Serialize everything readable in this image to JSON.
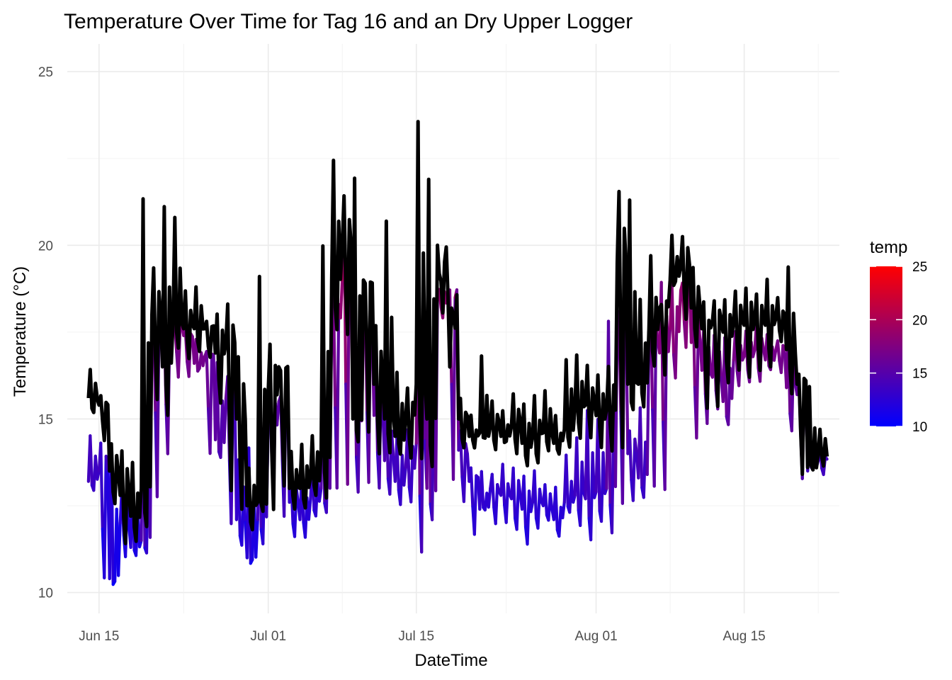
{
  "chart_data": {
    "type": "line",
    "title": "Temperature Over Time for Tag 16 and an Dry Upper Logger",
    "xlabel": "DateTime",
    "ylabel": "Temperature (°C)",
    "x_ticks": [
      "Jun 15",
      "Jul 01",
      "Jul 15",
      "Aug 01",
      "Aug 15"
    ],
    "x_tick_dates": [
      "2024-06-15",
      "2024-07-01",
      "2024-07-15",
      "2024-08-01",
      "2024-08-15"
    ],
    "xlim": [
      "2024-06-12",
      "2024-08-24"
    ],
    "y_ticks": [
      "10",
      "15",
      "20",
      "25"
    ],
    "ylim": [
      9.4,
      25.8
    ],
    "grid": true,
    "legend": {
      "title": "temp",
      "position": "right",
      "type": "colorbar",
      "low": 10,
      "high": 25,
      "ticks": [
        "25",
        "20",
        "15",
        "10"
      ],
      "low_color": "#0000ff",
      "high_color": "#ff0000"
    },
    "series": [
      {
        "color": "gradient by temp",
        "x": [
          "2024-06-14",
          "2024-06-15",
          "2024-06-16",
          "2024-06-17",
          "2024-06-18",
          "2024-06-19",
          "2024-06-20",
          "2024-06-21",
          "2024-06-22",
          "2024-06-23",
          "2024-06-24",
          "2024-06-25",
          "2024-06-26",
          "2024-06-27",
          "2024-06-28",
          "2024-06-29",
          "2024-06-30",
          "2024-07-01",
          "2024-07-02",
          "2024-07-03",
          "2024-07-04",
          "2024-07-05",
          "2024-07-06",
          "2024-07-07",
          "2024-07-08",
          "2024-07-09",
          "2024-07-10",
          "2024-07-11",
          "2024-07-12",
          "2024-07-13",
          "2024-07-14",
          "2024-07-15",
          "2024-07-16",
          "2024-07-17",
          "2024-07-18",
          "2024-07-19",
          "2024-07-20",
          "2024-07-21",
          "2024-07-22",
          "2024-07-23",
          "2024-07-24",
          "2024-07-25",
          "2024-07-26",
          "2024-07-27",
          "2024-07-28",
          "2024-07-29",
          "2024-07-30",
          "2024-07-31",
          "2024-08-01",
          "2024-08-02",
          "2024-08-03",
          "2024-08-04",
          "2024-08-05",
          "2024-08-06",
          "2024-08-07",
          "2024-08-08",
          "2024-08-09",
          "2024-08-10",
          "2024-08-11",
          "2024-08-12",
          "2024-08-13",
          "2024-08-14",
          "2024-08-15",
          "2024-08-16",
          "2024-08-17",
          "2024-08-18",
          "2024-08-19",
          "2024-08-20",
          "2024-08-21",
          "2024-08-22"
        ],
        "y": [
          13.2,
          13.5,
          10.4,
          12.0,
          11.3,
          11.5,
          17.5,
          16.9,
          17.6,
          17.4,
          16.6,
          16.8,
          14.4,
          15.6,
          12.1,
          11.0,
          12.1,
          14.8,
          15.5,
          12.6,
          12.1,
          12.7,
          13.0,
          17.8,
          19.0,
          15.0,
          17.4,
          15.1,
          13.8,
          13.2,
          13.6,
          14.3,
          13.0,
          18.4,
          18.6,
          14.1,
          13.2,
          12.4,
          13.0,
          12.8,
          12.7,
          12.4,
          12.6,
          12.5,
          12.1,
          12.6,
          12.8,
          12.7,
          12.9,
          13.0,
          17.8,
          14.0,
          13.3,
          17.2,
          16.9,
          17.6,
          18.7,
          17.2,
          16.4,
          16.2,
          15.5,
          16.7,
          16.8,
          17.0,
          16.7,
          17.0,
          15.9,
          15.7,
          13.5,
          13.8
        ],
        "y_min": [
          13.0,
          10.4,
          10.2,
          11.1,
          11.1,
          11.2,
          12.7,
          14.0,
          16.2,
          16.1,
          16.4,
          14.0,
          13.9,
          11.9,
          11.4,
          10.9,
          11.3,
          12.8,
          12.3,
          11.6,
          11.7,
          12.1,
          12.3,
          13.0,
          13.2,
          12.9,
          13.1,
          12.9,
          12.8,
          12.5,
          12.6,
          11.1,
          12.1,
          17.9,
          13.2,
          12.7,
          11.8,
          12.4,
          12.0,
          12.1,
          11.8,
          11.3,
          11.8,
          12.0,
          11.7,
          12.2,
          12.0,
          11.6,
          12.0,
          11.8,
          12.5,
          12.6,
          12.7,
          13.1,
          13.0,
          16.2,
          17.0,
          14.5,
          14.9,
          15.2,
          14.8,
          16.0,
          16.0,
          16.1,
          16.5,
          16.4,
          14.6,
          13.3,
          13.5,
          13.5
        ],
        "y_max": [
          14.5,
          14.3,
          14.3,
          13.0,
          13.3,
          17.6,
          18.0,
          17.7,
          17.7,
          17.5,
          17.3,
          17.0,
          16.6,
          16.2,
          13.8,
          14.1,
          15.6,
          16.0,
          15.7,
          13.4,
          13.5,
          13.8,
          16.8,
          18.6,
          21.0,
          17.6,
          18.7,
          16.8,
          15.5,
          14.5,
          14.8,
          20.2,
          19.3,
          18.8,
          18.6,
          14.6,
          13.6,
          13.5,
          13.4,
          13.7,
          13.6,
          13.4,
          13.5,
          13.1,
          13.0,
          14.0,
          14.5,
          15.2,
          15.0,
          17.9,
          18.1,
          14.7,
          15.2,
          18.1,
          18.9,
          19.0,
          18.8,
          18.7,
          17.6,
          17.5,
          17.3,
          17.4,
          17.5,
          17.7,
          17.4,
          17.3,
          17.6,
          16.2,
          14.2,
          14.2
        ]
      },
      {
        "color": "#000000",
        "x": [
          "2024-06-14",
          "2024-06-15",
          "2024-06-16",
          "2024-06-17",
          "2024-06-18",
          "2024-06-19",
          "2024-06-20",
          "2024-06-21",
          "2024-06-22",
          "2024-06-23",
          "2024-06-24",
          "2024-06-25",
          "2024-06-26",
          "2024-06-27",
          "2024-06-28",
          "2024-06-29",
          "2024-06-30",
          "2024-07-01",
          "2024-07-02",
          "2024-07-03",
          "2024-07-04",
          "2024-07-05",
          "2024-07-06",
          "2024-07-07",
          "2024-07-08",
          "2024-07-09",
          "2024-07-10",
          "2024-07-11",
          "2024-07-12",
          "2024-07-13",
          "2024-07-14",
          "2024-07-15",
          "2024-07-16",
          "2024-07-17",
          "2024-07-18",
          "2024-07-19",
          "2024-07-20",
          "2024-07-21",
          "2024-07-22",
          "2024-07-23",
          "2024-07-24",
          "2024-07-25",
          "2024-07-26",
          "2024-07-27",
          "2024-07-28",
          "2024-07-29",
          "2024-07-30",
          "2024-07-31",
          "2024-08-01",
          "2024-08-02",
          "2024-08-03",
          "2024-08-04",
          "2024-08-05",
          "2024-08-06",
          "2024-08-07",
          "2024-08-08",
          "2024-08-09",
          "2024-08-10",
          "2024-08-11",
          "2024-08-12",
          "2024-08-13",
          "2024-08-14",
          "2024-08-15",
          "2024-08-16",
          "2024-08-17",
          "2024-08-18",
          "2024-08-19",
          "2024-08-20",
          "2024-08-21",
          "2024-08-22"
        ],
        "y": [
          15.6,
          15.4,
          13.5,
          12.8,
          12.2,
          13.0,
          18.0,
          16.5,
          17.8,
          17.6,
          17.6,
          17.6,
          16.9,
          17.2,
          15.0,
          12.5,
          12.6,
          15.8,
          16.5,
          13.0,
          13.0,
          13.3,
          14.0,
          19.0,
          20.0,
          15.0,
          19.0,
          16.0,
          15.0,
          14.5,
          15.0,
          16.0,
          15.0,
          20.0,
          18.5,
          15.0,
          14.5,
          14.6,
          14.8,
          14.5,
          14.8,
          14.3,
          14.5,
          14.6,
          14.3,
          14.7,
          15.3,
          15.4,
          15.1,
          15.3,
          19.5,
          16.0,
          16.0,
          17.6,
          18.2,
          19.0,
          19.4,
          18.2,
          17.6,
          17.8,
          17.5,
          17.8,
          17.7,
          17.8,
          17.7,
          17.9,
          17.0,
          16.0,
          13.6,
          14.0
        ],
        "y_min": [
          15.2,
          14.5,
          12.5,
          11.5,
          11.6,
          11.8,
          15.5,
          15.2,
          17.0,
          16.8,
          17.0,
          16.8,
          15.4,
          13.0,
          12.5,
          11.8,
          12.3,
          12.5,
          13.0,
          12.5,
          12.5,
          12.7,
          12.8,
          17.6,
          17.4,
          14.3,
          14.5,
          14.1,
          14.0,
          13.9,
          13.8,
          13.9,
          13.6,
          18.0,
          18.0,
          14.1,
          14.1,
          14.4,
          14.2,
          14.3,
          14.0,
          13.6,
          13.7,
          14.0,
          14.0,
          14.1,
          14.4,
          14.5,
          14.2,
          14.2,
          14.2,
          15.2,
          15.4,
          16.5,
          16.2,
          18.9,
          17.8,
          17.0,
          15.3,
          15.4,
          16.0,
          16.3,
          16.2,
          16.5,
          16.4,
          17.2,
          15.8,
          13.3,
          13.5,
          13.7
        ],
        "y_max": [
          16.3,
          15.7,
          14.4,
          14.2,
          13.7,
          21.4,
          19.4,
          21.1,
          20.9,
          18.6,
          18.7,
          17.9,
          18.0,
          18.3,
          16.8,
          13.5,
          19.1,
          17.1,
          16.3,
          14.0,
          14.2,
          14.6,
          19.9,
          22.5,
          21.4,
          22.0,
          18.9,
          17.7,
          20.8,
          16.4,
          15.9,
          23.5,
          21.9,
          19.2,
          16.6,
          15.6,
          15.1,
          16.9,
          15.6,
          15.2,
          15.8,
          15.5,
          15.6,
          15.8,
          15.1,
          16.8,
          16.9,
          16.5,
          16.3,
          16.5,
          21.5,
          21.3,
          18.5,
          19.6,
          18.4,
          20.2,
          20.3,
          19.4,
          18.3,
          18.4,
          18.4,
          18.6,
          18.8,
          18.5,
          19.0,
          18.4,
          19.3,
          16.3,
          16.0,
          14.8
        ]
      }
    ]
  }
}
